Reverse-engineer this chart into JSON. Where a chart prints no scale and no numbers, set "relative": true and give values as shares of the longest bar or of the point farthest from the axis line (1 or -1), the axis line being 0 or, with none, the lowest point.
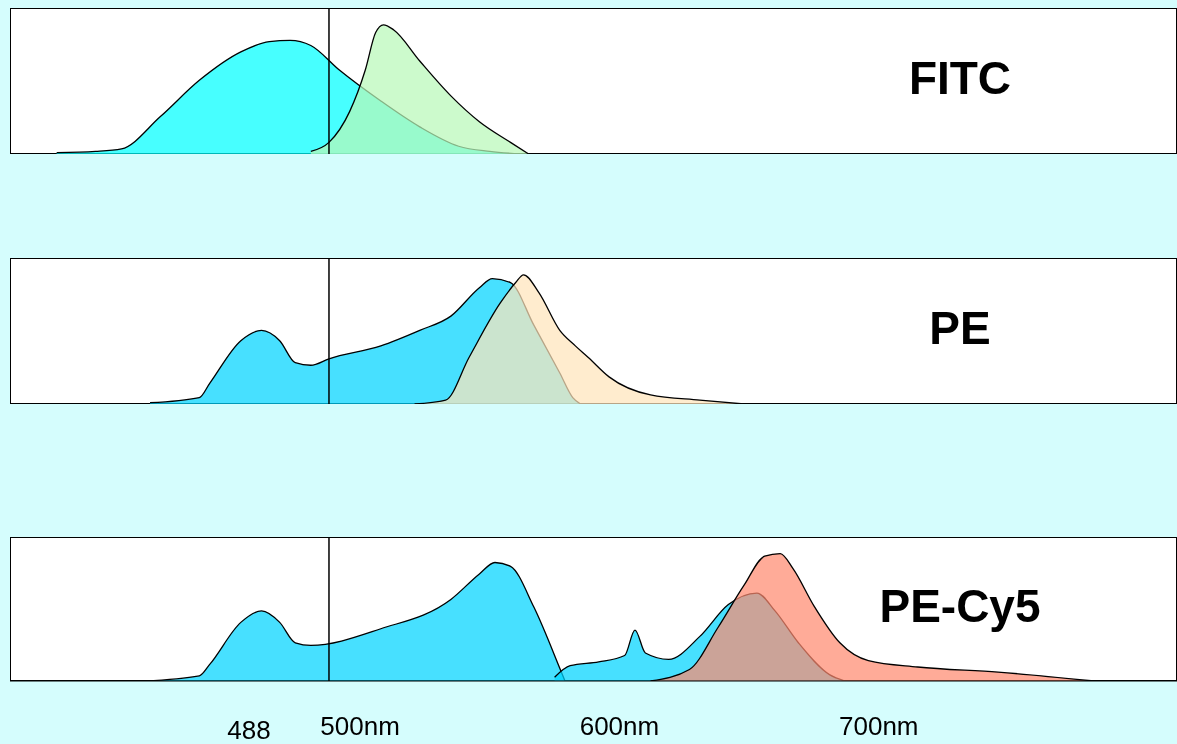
{
  "chart_data": [
    {
      "type": "area",
      "title": "FITC",
      "relative": true,
      "xlim": [
        365,
        815
      ],
      "tick_labels": false,
      "ref_lines": [
        {
          "axis": "x",
          "value": 488,
          "color": "#000000"
        }
      ],
      "series": [
        {
          "color": "#00ffff",
          "x": [
            383,
            398,
            408,
            423,
            438,
            454,
            465,
            473,
            481,
            492,
            508,
            523,
            538,
            550,
            562
          ],
          "values": [
            0.01,
            0.02,
            0.04,
            0.29,
            0.57,
            0.79,
            0.87,
            0.88,
            0.84,
            0.65,
            0.41,
            0.21,
            0.06,
            0.02,
            0
          ]
        },
        {
          "color": "#b8f8b8",
          "x": [
            481,
            488,
            496,
            502,
            506,
            509,
            513,
            523,
            535,
            546,
            558,
            565
          ],
          "values": [
            0.02,
            0.09,
            0.33,
            0.65,
            0.94,
            1,
            0.96,
            0.72,
            0.45,
            0.25,
            0.09,
            0
          ]
        }
      ]
    },
    {
      "type": "area",
      "title": "PE",
      "relative": true,
      "xlim": [
        365,
        815
      ],
      "tick_labels": false,
      "ref_lines": [
        {
          "axis": "x",
          "value": 488,
          "color": "#000000"
        }
      ],
      "series": [
        {
          "color": "#00d4ff",
          "x": [
            419,
            438,
            442,
            454,
            462,
            469,
            475,
            481,
            488,
            508,
            523,
            535,
            546,
            551,
            558,
            567,
            577,
            582,
            585
          ],
          "values": [
            0.01,
            0.05,
            0.16,
            0.49,
            0.57,
            0.49,
            0.32,
            0.3,
            0.35,
            0.45,
            0.57,
            0.68,
            0.9,
            0.97,
            0.94,
            0.61,
            0.24,
            0.05,
            0
          ]
        },
        {
          "color": "#ffe4bb",
          "x": [
            521,
            533,
            542,
            554,
            560,
            563,
            569,
            577,
            583,
            588,
            596,
            612,
            631,
            648
          ],
          "values": [
            0,
            0.03,
            0.36,
            0.78,
            0.94,
            1,
            0.86,
            0.57,
            0.45,
            0.36,
            0.21,
            0.07,
            0.03,
            0
          ]
        }
      ]
    },
    {
      "type": "area",
      "title": "PE-Cy5",
      "relative": true,
      "xlim": [
        365,
        815
      ],
      "tick_labels": "x",
      "xticks": [
        {
          "value": 500,
          "label": "500nm"
        },
        {
          "value": 600,
          "label": "600nm"
        },
        {
          "value": 700,
          "label": "700nm"
        }
      ],
      "ref_lines": [
        {
          "axis": "x",
          "value": 488,
          "label": "488",
          "color": "#000000"
        }
      ],
      "series": [
        {
          "color": "#00d4ff",
          "x": [
            417,
            438,
            442,
            454,
            462,
            469,
            475,
            481,
            508,
            535,
            546,
            552,
            558,
            567,
            577,
            579
          ],
          "values": [
            0,
            0.04,
            0.13,
            0.46,
            0.55,
            0.46,
            0.3,
            0.28,
            0.41,
            0.64,
            0.84,
            0.93,
            0.9,
            0.58,
            0.1,
            0
          ]
        },
        {
          "color": "#00d4ff",
          "x": [
            575,
            581,
            592,
            602,
            606,
            610,
            619,
            631,
            642,
            653,
            660,
            669,
            681,
            687
          ],
          "values": [
            0.03,
            0.12,
            0.15,
            0.2,
            0.4,
            0.22,
            0.17,
            0.35,
            0.6,
            0.69,
            0.55,
            0.3,
            0.05,
            0
          ]
        },
        {
          "color": "#ff8a70",
          "x": [
            612,
            627,
            638,
            648,
            656,
            662,
            667,
            675,
            685,
            696,
            715,
            746,
            783
          ],
          "values": [
            0,
            0.09,
            0.42,
            0.75,
            0.98,
            1,
            0.88,
            0.59,
            0.3,
            0.16,
            0.11,
            0.07,
            0
          ]
        }
      ]
    }
  ]
}
